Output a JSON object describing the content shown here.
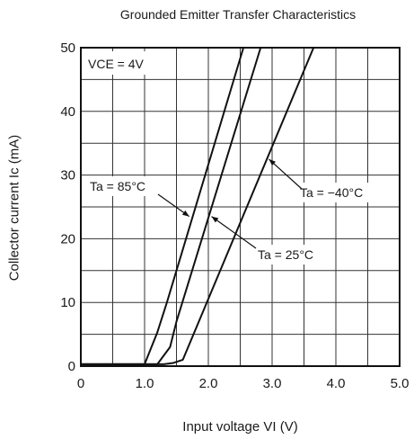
{
  "chart_data": {
    "type": "line",
    "title": "Grounded Emitter Transfer Characteristics",
    "xlabel": "Input voltage  VI (V)",
    "ylabel": "Collector current  Ic (mA)",
    "xlim": [
      0,
      5.0
    ],
    "ylim": [
      0,
      50
    ],
    "x_ticks": [
      "0",
      "1.0",
      "2.0",
      "3.0",
      "4.0",
      "5.0"
    ],
    "y_ticks": [
      "0",
      "10",
      "20",
      "30",
      "40",
      "50"
    ],
    "grid": true,
    "condition": "VCE = 4V",
    "series": [
      {
        "name": "Ta = 85°C",
        "x": [
          0,
          1.0,
          1.2,
          1.35,
          2.55
        ],
        "y": [
          0.3,
          0.3,
          5.3,
          10,
          50
        ]
      },
      {
        "name": "Ta = 25°C",
        "x": [
          0,
          1.2,
          1.4,
          1.5,
          2.82
        ],
        "y": [
          0.3,
          0.3,
          3,
          7,
          50
        ]
      },
      {
        "name": "Ta = −40°C",
        "x": [
          0,
          1.3,
          1.45,
          1.6,
          3.65
        ],
        "y": [
          0.3,
          0.3,
          0.5,
          1,
          50
        ]
      }
    ],
    "annotations": [
      {
        "text": "Ta = 85°C",
        "series": 0,
        "x": 1.7,
        "y": 23.5
      },
      {
        "text": "Ta = 25°C",
        "series": 1,
        "x": 2.05,
        "y": 23.5
      },
      {
        "text": "Ta = −40°C",
        "series": 2,
        "x": 2.95,
        "y": 32.5
      }
    ]
  }
}
